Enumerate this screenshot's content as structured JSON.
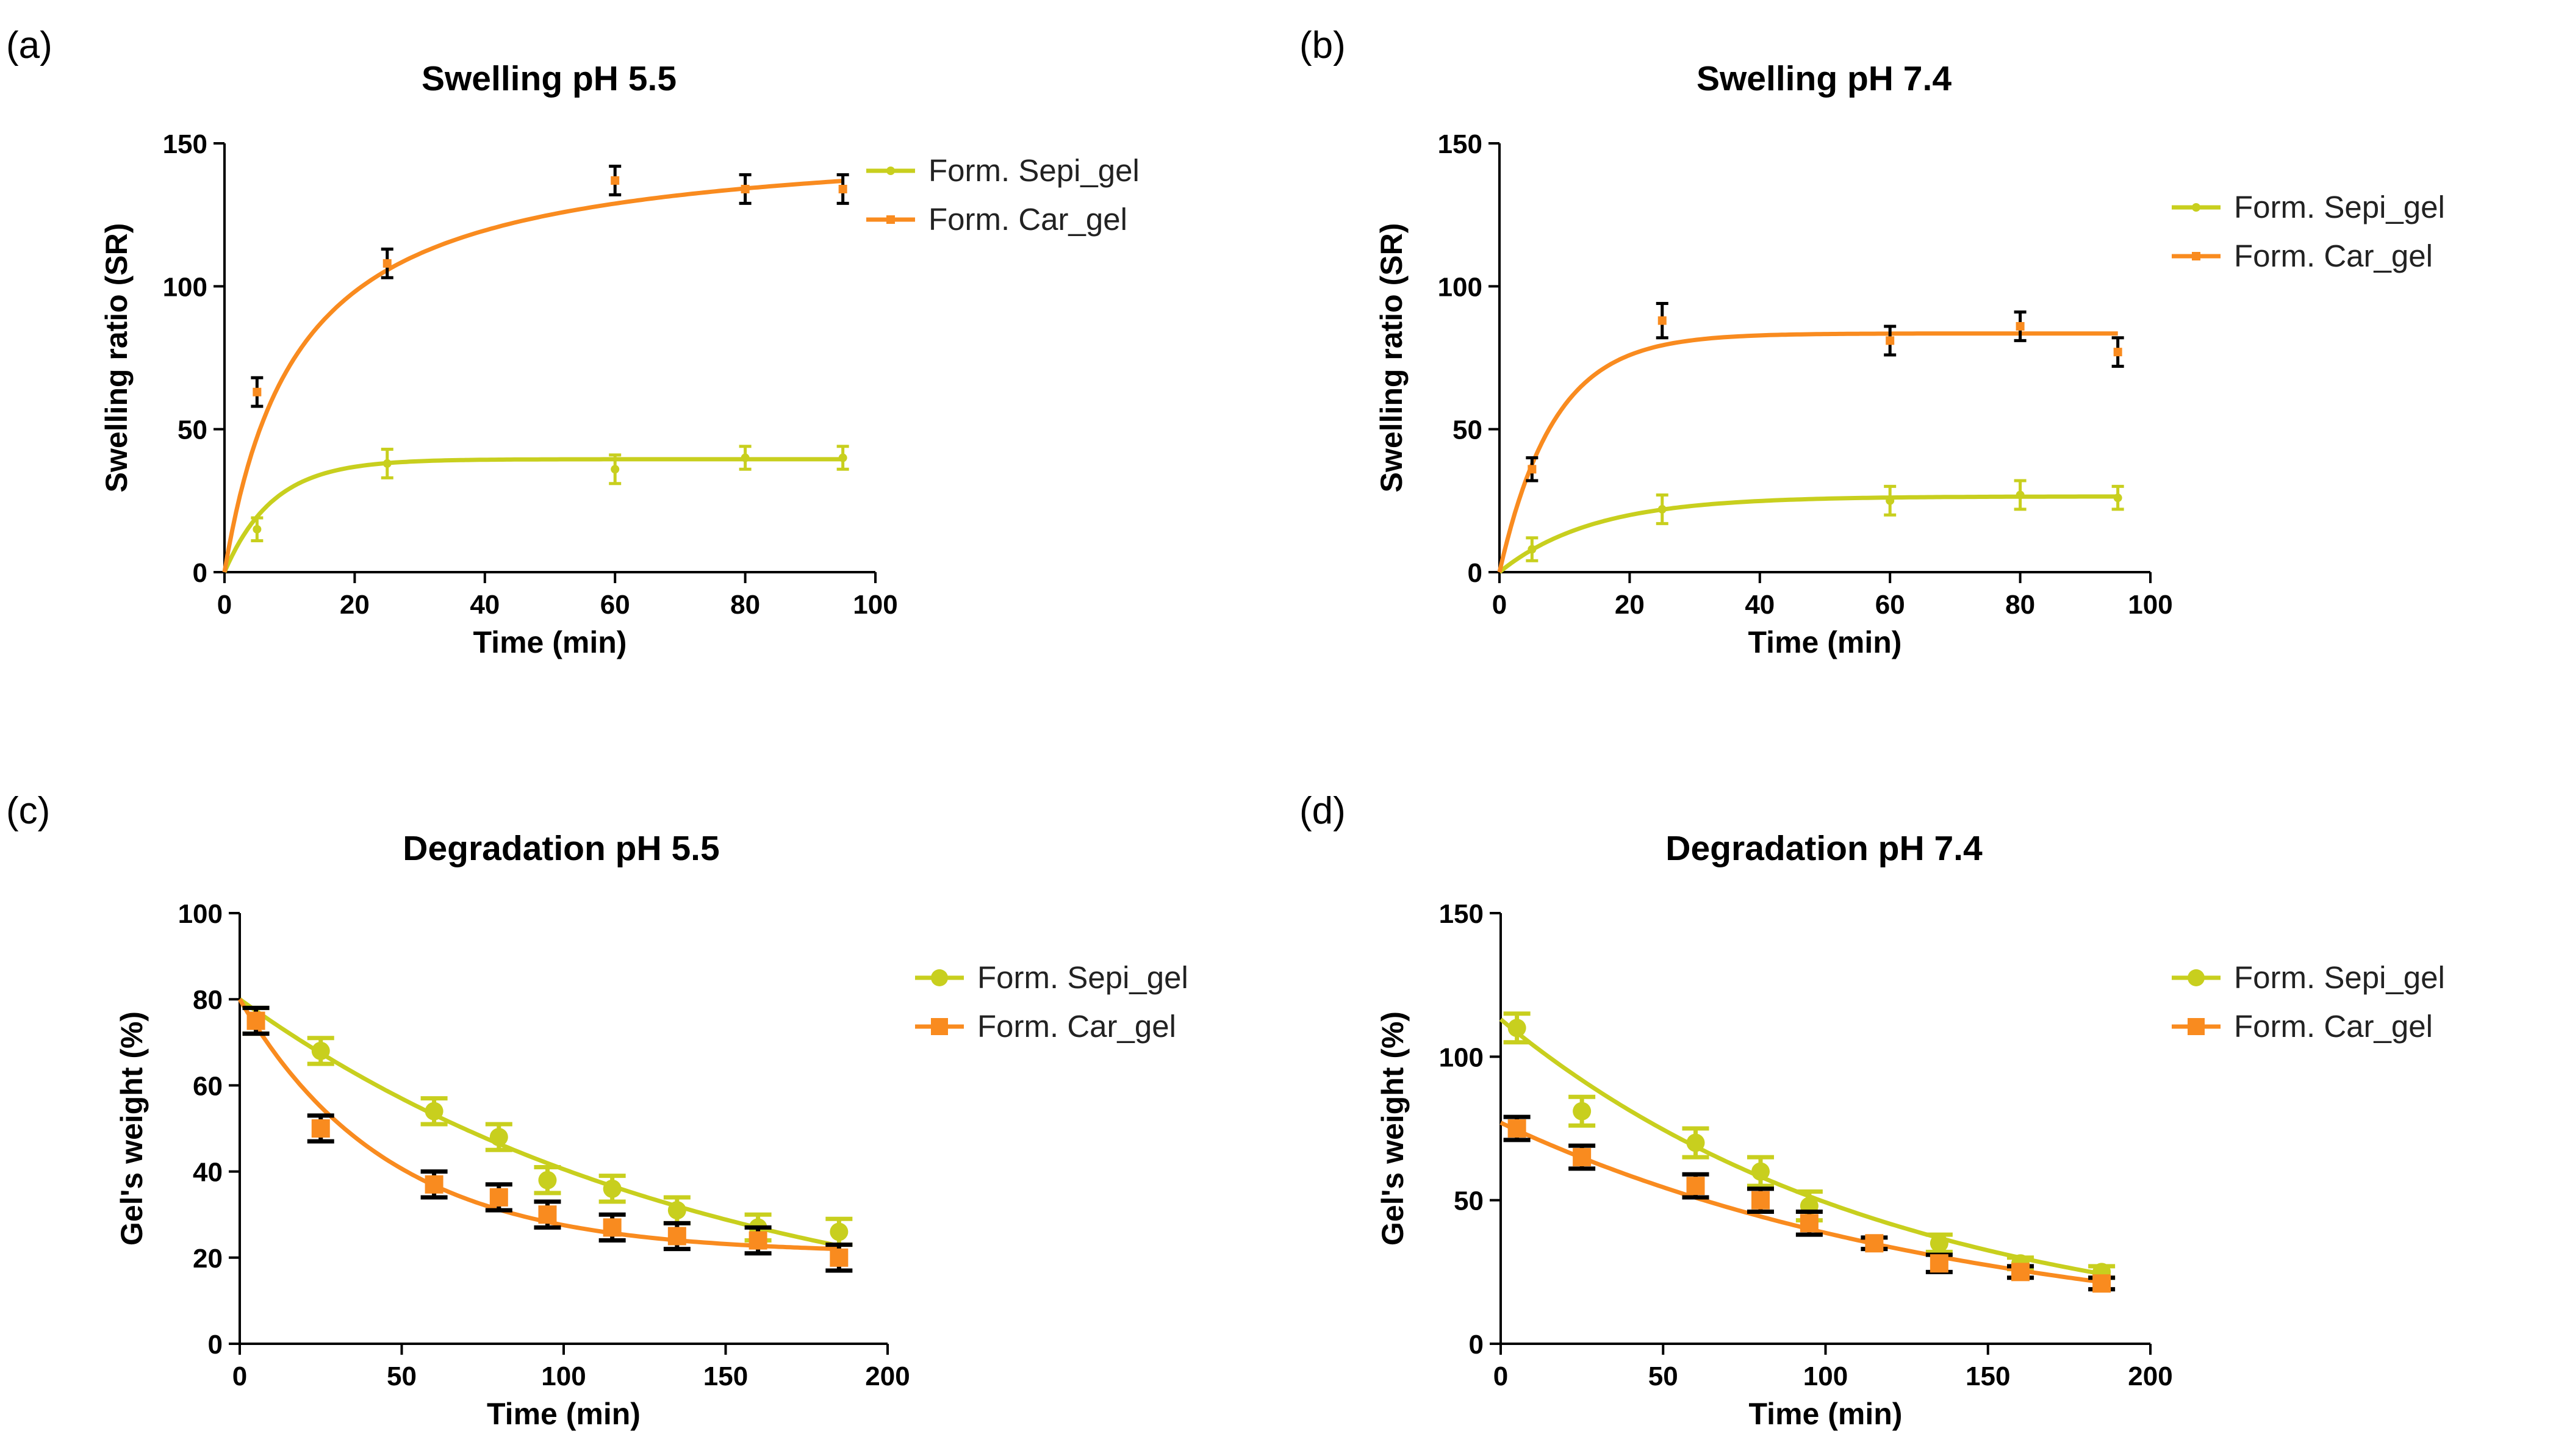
{
  "colors": {
    "sepi": "#c8cf1e",
    "car": "#f98b1f",
    "axis": "#000000",
    "errorbar": "#000000"
  },
  "chart_data": [
    {
      "panel": "(a)",
      "type": "line",
      "title": "Swelling pH 5.5",
      "xlabel": "Time (min)",
      "ylabel": "Swelling ratio (SR)",
      "xlim": [
        0,
        100
      ],
      "ylim": [
        0,
        150
      ],
      "xticks": [
        0,
        20,
        40,
        60,
        80,
        100
      ],
      "yticks": [
        0,
        50,
        100,
        150
      ],
      "legend": "top-right",
      "marker": "small",
      "series": [
        {
          "name": "Form. Sepi_gel",
          "color": "sepi",
          "x": [
            5,
            25,
            60,
            80,
            95
          ],
          "y": [
            15,
            38,
            36,
            40,
            40
          ],
          "err": [
            4,
            5,
            5,
            4,
            4
          ],
          "err_color": "sepi",
          "fit": {
            "model": "plateau",
            "y0": 0,
            "plateau": 39.5,
            "k": 0.135
          }
        },
        {
          "name": "Form. Car_gel",
          "color": "car",
          "x": [
            5,
            25,
            60,
            80,
            95
          ],
          "y": [
            63,
            108,
            137,
            134,
            134
          ],
          "err": [
            5,
            5,
            5,
            5,
            5
          ],
          "err_color": "errorbar",
          "fit": {
            "model": "hyperbola",
            "bmax": 153,
            "kd": 11.2
          }
        }
      ]
    },
    {
      "panel": "(b)",
      "type": "line",
      "title": "Swelling pH 7.4",
      "xlabel": "Time (min)",
      "ylabel": "Swelling ratio (SR)",
      "xlim": [
        0,
        100
      ],
      "ylim": [
        0,
        150
      ],
      "xticks": [
        0,
        20,
        40,
        60,
        80,
        100
      ],
      "yticks": [
        0,
        50,
        100,
        150
      ],
      "legend": "right",
      "marker": "small",
      "series": [
        {
          "name": "Form. Sepi_gel",
          "color": "sepi",
          "x": [
            5,
            25,
            60,
            80,
            95
          ],
          "y": [
            8,
            22,
            25,
            27,
            26
          ],
          "err": [
            4,
            5,
            5,
            5,
            4
          ],
          "err_color": "sepi",
          "fit": {
            "model": "plateau",
            "y0": 0,
            "plateau": 26.5,
            "k": 0.07
          }
        },
        {
          "name": "Form. Car_gel",
          "color": "car",
          "x": [
            5,
            25,
            60,
            80,
            95
          ],
          "y": [
            36,
            88,
            81,
            86,
            77
          ],
          "err": [
            4,
            6,
            5,
            5,
            5
          ],
          "err_color": "errorbar",
          "fit": {
            "model": "plateau",
            "y0": 0,
            "plateau": 83.5,
            "k": 0.12
          }
        }
      ]
    },
    {
      "panel": "(c)",
      "type": "line",
      "title": "Degradation pH 5.5",
      "xlabel": "Time (min)",
      "ylabel": "Gel's weight  (%)",
      "xlim": [
        0,
        200
      ],
      "ylim": [
        0,
        100
      ],
      "xticks": [
        0,
        50,
        100,
        150,
        200
      ],
      "yticks": [
        0,
        20,
        40,
        60,
        80,
        100
      ],
      "legend": "top-right",
      "marker": "large",
      "series": [
        {
          "name": "Form. Sepi_gel",
          "color": "sepi",
          "x": [
            5,
            25,
            60,
            80,
            95,
            115,
            135,
            160,
            185
          ],
          "y": [
            75,
            68,
            54,
            48,
            38,
            36,
            31,
            27,
            26
          ],
          "err": [
            3,
            3,
            3,
            3,
            3,
            3,
            3,
            3,
            3
          ],
          "err_color": "sepi",
          "fit": {
            "model": "decay",
            "y0": 80,
            "plateau": 0,
            "k": 0.0068
          }
        },
        {
          "name": "Form. Car_gel",
          "color": "car",
          "x": [
            5,
            25,
            60,
            80,
            95,
            115,
            135,
            160,
            185
          ],
          "y": [
            75,
            50,
            37,
            34,
            30,
            27,
            25,
            24,
            20
          ],
          "err": [
            3,
            3,
            3,
            3,
            3,
            3,
            3,
            3,
            3
          ],
          "err_color": "errorbar",
          "fit": {
            "model": "decay",
            "y0": 80,
            "plateau": 21,
            "k": 0.022
          }
        }
      ]
    },
    {
      "panel": "(d)",
      "type": "line",
      "title": "Degradation pH 7.4",
      "xlabel": "Time (min)",
      "ylabel": "Gel's weight  (%)",
      "xlim": [
        0,
        200
      ],
      "ylim": [
        0,
        150
      ],
      "xticks": [
        0,
        50,
        100,
        150,
        200
      ],
      "yticks": [
        0,
        50,
        100,
        150
      ],
      "legend": "top-right",
      "marker": "large",
      "series": [
        {
          "name": "Form. Sepi_gel",
          "color": "sepi",
          "x": [
            5,
            25,
            60,
            80,
            95,
            135,
            160,
            185
          ],
          "y": [
            110,
            81,
            70,
            60,
            48,
            35,
            28,
            25
          ],
          "err": [
            5,
            5,
            5,
            5,
            5,
            3,
            2,
            2
          ],
          "err_color": "sepi",
          "fit": {
            "model": "decay",
            "y0": 113,
            "plateau": 0,
            "k": 0.0083
          }
        },
        {
          "name": "Form. Car_gel",
          "color": "car",
          "x": [
            5,
            25,
            60,
            80,
            95,
            115,
            135,
            160,
            185
          ],
          "y": [
            75,
            65,
            55,
            50,
            42,
            35,
            28,
            25,
            21
          ],
          "err": [
            4,
            4,
            4,
            4,
            4,
            2,
            3,
            2,
            2
          ],
          "err_color": "errorbar",
          "fit": {
            "model": "decay",
            "y0": 77,
            "plateau": 0,
            "k": 0.0069
          }
        }
      ]
    }
  ]
}
